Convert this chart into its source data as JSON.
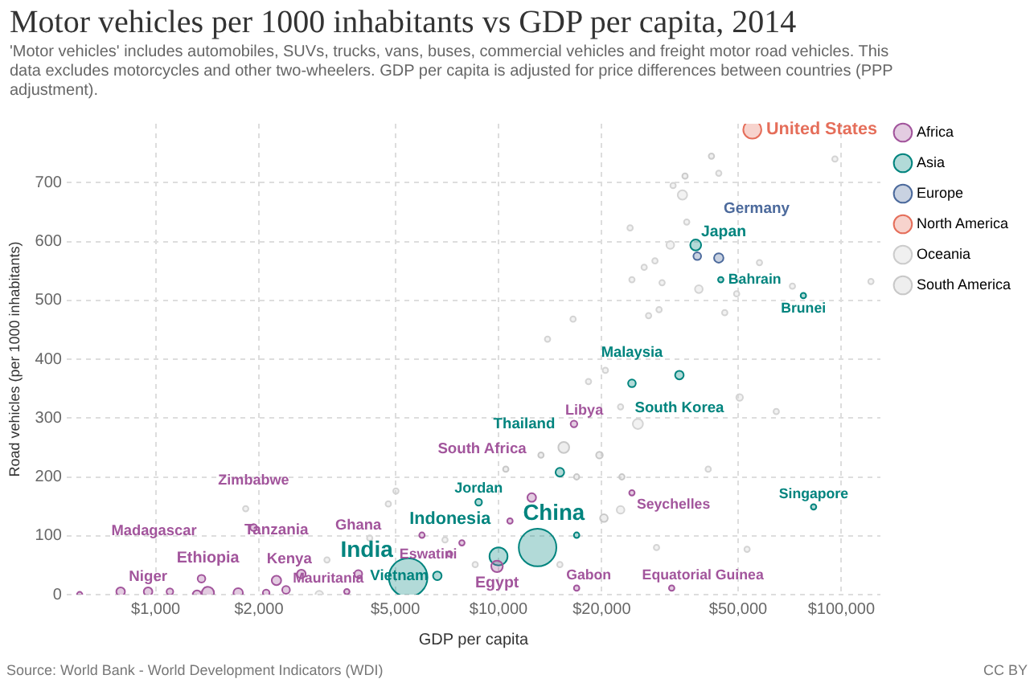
{
  "chart_data": {
    "type": "bubble",
    "title": "Motor vehicles per 1000 inhabitants vs GDP per capita, 2014",
    "subtitle": "'Motor vehicles' includes automobiles, SUVs, trucks, vans, buses, commercial vehicles and freight motor road vehicles. This data excludes motorcycles and other two-wheelers. GDP per capita is adjusted for price differences between countries (PPP adjustment).",
    "xlabel": "GDP per capita",
    "ylabel": "Road vehicles (per 1000 inhabitants)",
    "log": "x",
    "grid": true,
    "legend": "top right",
    "relative": false,
    "xlim": [
      550,
      130000
    ],
    "ylim": [
      0,
      800
    ],
    "xticks": [
      {
        "value": 1000,
        "label": "$1,000"
      },
      {
        "value": 2000,
        "label": "$2,000"
      },
      {
        "value": 5000,
        "label": "$5,000"
      },
      {
        "value": 10000,
        "label": "$10,000"
      },
      {
        "value": 20000,
        "label": "$20,000"
      },
      {
        "value": 50000,
        "label": "$50,000"
      },
      {
        "value": 100000,
        "label": "$100,000"
      }
    ],
    "yticks": [
      0,
      100,
      200,
      300,
      400,
      500,
      600,
      700
    ],
    "series": [
      {
        "name": "Africa",
        "color": "#a2559c",
        "x": [
          1930,
          950,
          1360,
          1420,
          2250,
          2660,
          3900,
          3610,
          7820,
          9900,
          12500,
          16600,
          24500,
          16900,
          32000,
          5980,
          10800,
          600,
          790,
          1100,
          1320,
          1740,
          2100,
          2400,
          7200
        ],
        "values": [
          114,
          5,
          27,
          3,
          24,
          35,
          35,
          5,
          88,
          48,
          165,
          290,
          173,
          11,
          11,
          101,
          125,
          0,
          5,
          5,
          0,
          3,
          3,
          8,
          69
        ],
        "sizes": [
          0.03,
          0.05,
          0.04,
          0.1,
          0.06,
          0.05,
          0.04,
          0.02,
          0.02,
          0.09,
          0.05,
          0.03,
          0.02,
          0.02,
          0.02,
          0.02,
          0.02,
          0.02,
          0.05,
          0.03,
          0.05,
          0.06,
          0.03,
          0.04,
          0.02
        ]
      },
      {
        "name": "Asia",
        "color": "#00847e",
        "x": [
          5450,
          6630,
          10000,
          13000,
          8750,
          15100,
          24500,
          33700,
          37600,
          44500,
          77500,
          83000,
          16900
        ],
        "values": [
          29,
          32,
          65,
          80,
          157,
          208,
          359,
          373,
          594,
          535,
          508,
          149,
          101
        ],
        "sizes": [
          1,
          0.05,
          0.22,
          0.95,
          0.03,
          0.05,
          0.04,
          0.05,
          0.08,
          0.02,
          0.02,
          0.02,
          0.02
        ]
      },
      {
        "name": "Europe",
        "color": "#4c6a9c",
        "x": [
          43900,
          38000
        ],
        "values": [
          572,
          575
        ],
        "sizes": [
          0.06,
          0.04
        ]
      },
      {
        "name": "North America",
        "color": "#e56e5a",
        "x": [
          55000
        ],
        "values": [
          790
        ],
        "sizes": [
          0.22
        ]
      },
      {
        "name": "Oceania",
        "color": "#cccccc",
        "x": [
          41800,
          35000
        ],
        "values": [
          745,
          711
        ],
        "sizes": [
          0.02,
          0.02
        ]
      },
      {
        "name": "South America",
        "color": "#c8c8c8",
        "x": [
          15500,
          13300,
          16900,
          19700,
          22900,
          10500,
          20300
        ],
        "values": [
          250,
          237,
          200,
          237,
          200,
          213,
          130
        ],
        "sizes": [
          0.08,
          0.02,
          0.02,
          0.03,
          0.02,
          0.02,
          0.04
        ]
      },
      {
        "color": "#d4d4d4",
        "x": [
          95800,
          43900,
          34400,
          32300,
          35400,
          24200,
          31700,
          28600,
          26600,
          24500,
          30000,
          38400,
          49500,
          57700,
          122000,
          72000,
          29400,
          27400,
          45700,
          16500,
          13900,
          20500,
          18300,
          50500,
          64600,
          22700,
          25500,
          40900,
          22700,
          53100,
          28900,
          15100,
          1830,
          5020,
          4770,
          4210,
          6980,
          8550,
          3000,
          3160
        ],
        "values": [
          740,
          716,
          679,
          695,
          633,
          623,
          594,
          567,
          556,
          535,
          530,
          519,
          511,
          564,
          532,
          524,
          484,
          474,
          479,
          468,
          434,
          381,
          362,
          335,
          311,
          319,
          290,
          213,
          144,
          77,
          80,
          51,
          146,
          176,
          154,
          96,
          93,
          51,
          0,
          59
        ],
        "sizes": [
          0.02,
          0.02,
          0.06,
          0.02,
          0.02,
          0.02,
          0.04,
          0.02,
          0.02,
          0.02,
          0.02,
          0.04,
          0.02,
          0.02,
          0.02,
          0.02,
          0.02,
          0.02,
          0.02,
          0.02,
          0.02,
          0.02,
          0.02,
          0.03,
          0.02,
          0.02,
          0.07,
          0.02,
          0.04,
          0.02,
          0.02,
          0.02,
          0.02,
          0.02,
          0.02,
          0.02,
          0.02,
          0.02,
          0.04,
          0.02
        ]
      }
    ],
    "annotations": [
      {
        "text": "United States",
        "x": 55000,
        "y": 790
      },
      {
        "text": "Japan",
        "x": 37600,
        "y": 594
      },
      {
        "text": "Germany",
        "x": 43900,
        "y": 572
      },
      {
        "text": "Bahrain",
        "x": 44500,
        "y": 535
      },
      {
        "text": "Brunei",
        "x": 77500,
        "y": 508
      },
      {
        "text": "South Korea",
        "x": 33700,
        "y": 373
      },
      {
        "text": "Malaysia",
        "x": 24500,
        "y": 359
      },
      {
        "text": "Libya",
        "x": 16600,
        "y": 290
      },
      {
        "text": "Thailand",
        "x": 15100,
        "y": 208
      },
      {
        "text": "Jordan",
        "x": 8750,
        "y": 157
      },
      {
        "text": "South Africa",
        "x": 12500,
        "y": 165
      },
      {
        "text": "Seychelles",
        "x": 24500,
        "y": 173
      },
      {
        "text": "Singapore",
        "x": 83000,
        "y": 149
      },
      {
        "text": "Zimbabwe",
        "x": 1930,
        "y": 114
      },
      {
        "text": "Eswatini",
        "x": 7820,
        "y": 88
      },
      {
        "text": "China",
        "x": 13000,
        "y": 80
      },
      {
        "text": "Indonesia",
        "x": 10000,
        "y": 65
      },
      {
        "text": "India",
        "x": 5450,
        "y": 29
      },
      {
        "text": "Vietnam",
        "x": 6630,
        "y": 32
      },
      {
        "text": "Egypt",
        "x": 9900,
        "y": 48
      },
      {
        "text": "Ghana",
        "x": 3900,
        "y": 35
      },
      {
        "text": "Kenya",
        "x": 2660,
        "y": 35
      },
      {
        "text": "Madagascar",
        "x": 1360,
        "y": 27
      },
      {
        "text": "Niger",
        "x": 950,
        "y": 5
      },
      {
        "text": "Ethiopia",
        "x": 1420,
        "y": 3
      },
      {
        "text": "Tanzania",
        "x": 2250,
        "y": 24
      },
      {
        "text": "Mauritania",
        "x": 3610,
        "y": 5
      },
      {
        "text": "Gabon",
        "x": 16900,
        "y": 11
      },
      {
        "text": "Equatorial Guinea",
        "x": 32000,
        "y": 11
      },
      "Source: World Bank - World Development Indicators (WDI)",
      "CC BY"
    ]
  }
}
